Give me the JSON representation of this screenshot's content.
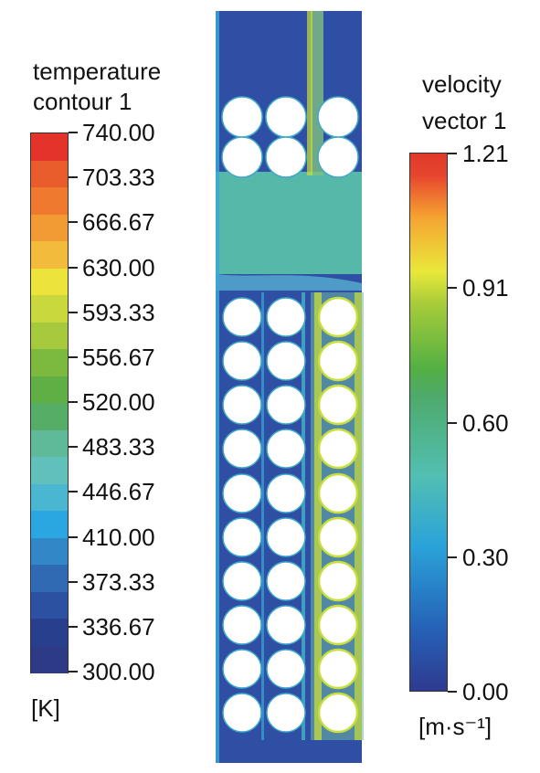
{
  "temperature_legend": {
    "title_lines": [
      "temperature",
      "contour 1"
    ],
    "unit": "[K]",
    "labels": [
      "740.00",
      "703.33",
      "666.67",
      "630.00",
      "593.33",
      "556.67",
      "520.00",
      "483.33",
      "446.67",
      "410.00",
      "373.33",
      "336.67",
      "300.00"
    ],
    "band_colors": [
      "#e4332a",
      "#e95c2c",
      "#ef7a2f",
      "#f29b34",
      "#f3bb3b",
      "#ece33b",
      "#c9d83c",
      "#a6c93d",
      "#7cba3f",
      "#5faf44",
      "#56ad66",
      "#5fba9a",
      "#62c0bb",
      "#4ab6cf",
      "#2aa7e0",
      "#3288c6",
      "#2f6ab3",
      "#2c51a0",
      "#283f8d",
      "#2d3a85"
    ]
  },
  "velocity_legend": {
    "title_lines": [
      "velocity",
      "vector 1"
    ],
    "unit": "[m·s⁻¹]",
    "labels": [
      "1.21",
      "0.91",
      "0.60",
      "0.30",
      "0.00"
    ]
  },
  "simulation": {
    "background_color": "#2e4fa3",
    "channel_color": "#56b8a8",
    "jet_color": "#c8de3c",
    "tube_color": "#ffffff"
  }
}
